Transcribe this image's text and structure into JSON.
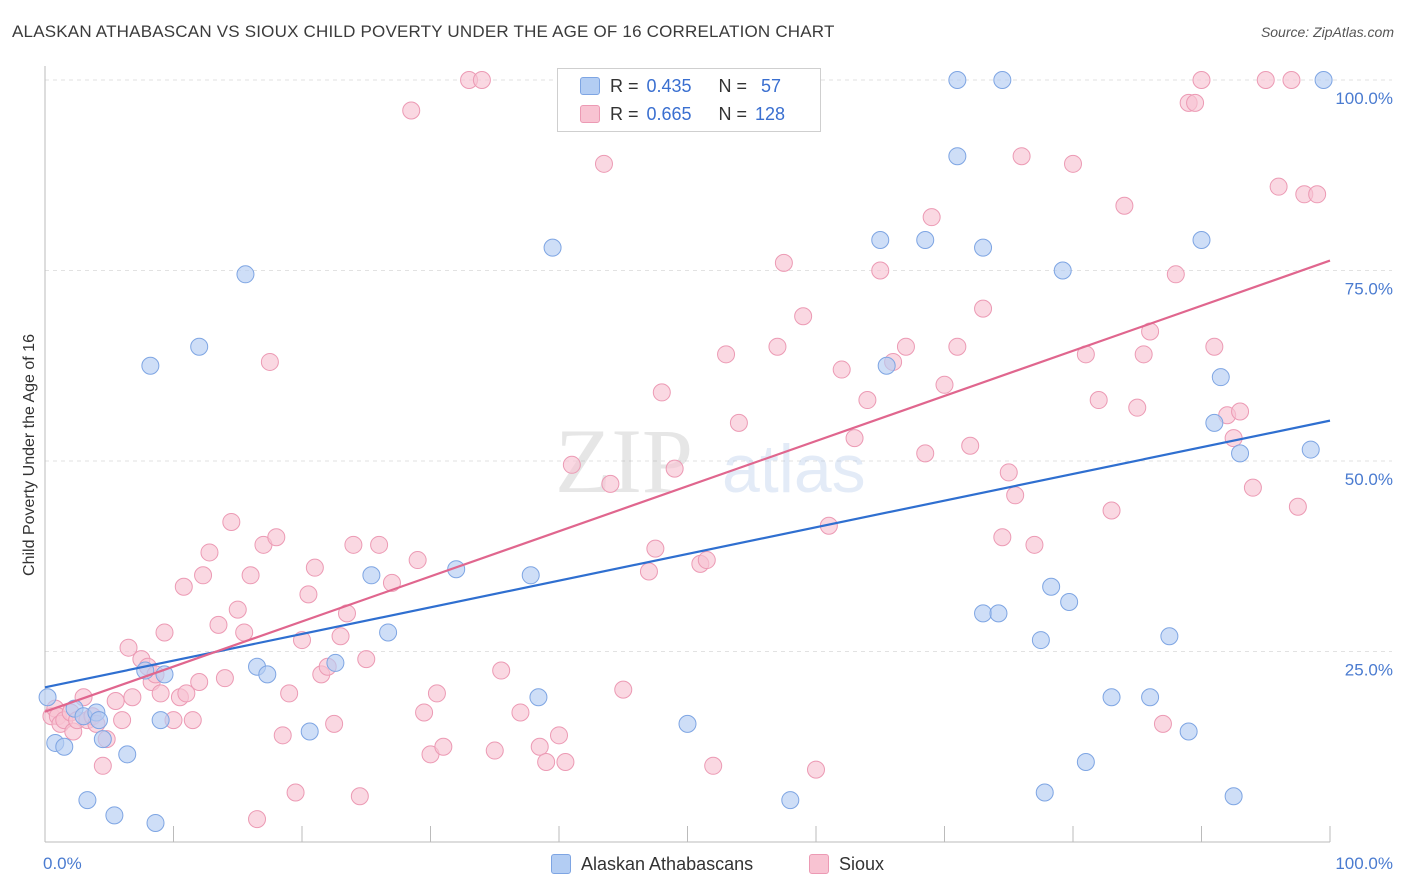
{
  "title": "ALASKAN ATHABASCAN VS SIOUX CHILD POVERTY UNDER THE AGE OF 16 CORRELATION CHART",
  "source": "Source: ZipAtlas.com",
  "watermark": {
    "part1": "ZIP",
    "part2": "atlas"
  },
  "legend": {
    "r_label": "R =",
    "n_label": "N =",
    "rows": [
      {
        "r": "0.435",
        "n": "57"
      },
      {
        "r": "0.665",
        "n": "128"
      }
    ]
  },
  "bottom_legend": [
    "Alaskan Athabascans",
    "Sioux"
  ],
  "chart_data": {
    "type": "scatter",
    "title": "ALASKAN ATHABASCAN VS SIOUX CHILD POVERTY UNDER THE AGE OF 16 CORRELATION CHART",
    "xlabel": "",
    "ylabel": "Child Poverty Under the Age of 16",
    "xlim": [
      0,
      100
    ],
    "ylim": [
      0,
      100
    ],
    "x_tick_labels": [
      "0.0%",
      "100.0%"
    ],
    "y_tick_labels": [
      "25.0%",
      "50.0%",
      "75.0%",
      "100.0%"
    ],
    "y_ticks": [
      25,
      50,
      75,
      100
    ],
    "grid": true,
    "legend_position": "top-center",
    "colors": {
      "blue_fill": "#b3cdf3",
      "blue_stroke": "#7ea5e3",
      "blue_line": "#2f6fd0",
      "pink_fill": "#f8c3d2",
      "pink_stroke": "#ec9ab4",
      "pink_line": "#e0668e"
    },
    "series": [
      {
        "name": "Alaskan Athabascans",
        "color": "blue",
        "trend": {
          "x": [
            0,
            100
          ],
          "y": [
            20.3,
            55.3
          ]
        },
        "points": [
          [
            0.2,
            19
          ],
          [
            0.8,
            13
          ],
          [
            1.5,
            12.5
          ],
          [
            2.3,
            17.5
          ],
          [
            3,
            16.5
          ],
          [
            3.3,
            5.5
          ],
          [
            4,
            17
          ],
          [
            4.2,
            16
          ],
          [
            4.5,
            13.5
          ],
          [
            5.4,
            3.5
          ],
          [
            6.4,
            11.5
          ],
          [
            7.8,
            22.5
          ],
          [
            8.2,
            62.5
          ],
          [
            8.6,
            2.5
          ],
          [
            9,
            16
          ],
          [
            9.3,
            22
          ],
          [
            12,
            65
          ],
          [
            15.6,
            74.5
          ],
          [
            16.5,
            23
          ],
          [
            17.3,
            22
          ],
          [
            20.6,
            14.5
          ],
          [
            22.6,
            23.5
          ],
          [
            25.4,
            35
          ],
          [
            26.7,
            27.5
          ],
          [
            32,
            35.8
          ],
          [
            37.8,
            35
          ],
          [
            38.4,
            19
          ],
          [
            39.5,
            78
          ],
          [
            50,
            15.5
          ],
          [
            58,
            5.5
          ],
          [
            65,
            79
          ],
          [
            65.5,
            62.5
          ],
          [
            68.5,
            79
          ],
          [
            71,
            90
          ],
          [
            71,
            100
          ],
          [
            73,
            78
          ],
          [
            73,
            30
          ],
          [
            74.2,
            30
          ],
          [
            74.5,
            100
          ],
          [
            77.5,
            26.5
          ],
          [
            77.8,
            6.5
          ],
          [
            78.3,
            33.5
          ],
          [
            79.2,
            75
          ],
          [
            79.7,
            31.5
          ],
          [
            81,
            10.5
          ],
          [
            83,
            19
          ],
          [
            86,
            19
          ],
          [
            87.5,
            27
          ],
          [
            89,
            14.5
          ],
          [
            90,
            79
          ],
          [
            91,
            55
          ],
          [
            91.5,
            61
          ],
          [
            92.5,
            6
          ],
          [
            93,
            51
          ],
          [
            98.5,
            51.5
          ],
          [
            99.5,
            100
          ]
        ]
      },
      {
        "name": "Sioux",
        "color": "pink",
        "trend": {
          "x": [
            0,
            100
          ],
          "y": [
            17.1,
            76.3
          ]
        },
        "points": [
          [
            0.5,
            16.5
          ],
          [
            0.8,
            17.5
          ],
          [
            1,
            16.5
          ],
          [
            1.2,
            15.5
          ],
          [
            1.5,
            16
          ],
          [
            2,
            17
          ],
          [
            2.2,
            14.5
          ],
          [
            2.5,
            16
          ],
          [
            3,
            19
          ],
          [
            3.3,
            16
          ],
          [
            3.7,
            16.5
          ],
          [
            4,
            15.5
          ],
          [
            4.5,
            10
          ],
          [
            4.8,
            13.5
          ],
          [
            5.5,
            18.5
          ],
          [
            6,
            16
          ],
          [
            6.5,
            25.5
          ],
          [
            6.8,
            19
          ],
          [
            7.5,
            24
          ],
          [
            8,
            23
          ],
          [
            8.3,
            21
          ],
          [
            8.6,
            22
          ],
          [
            9,
            19.5
          ],
          [
            9.3,
            27.5
          ],
          [
            10,
            16
          ],
          [
            10.5,
            19
          ],
          [
            10.8,
            33.5
          ],
          [
            11,
            19.5
          ],
          [
            11.5,
            16
          ],
          [
            12,
            21
          ],
          [
            12.3,
            35
          ],
          [
            12.8,
            38
          ],
          [
            13.5,
            28.5
          ],
          [
            14,
            21.5
          ],
          [
            14.5,
            42
          ],
          [
            15,
            30.5
          ],
          [
            15.5,
            27.5
          ],
          [
            16,
            35
          ],
          [
            16.5,
            3
          ],
          [
            17,
            39
          ],
          [
            17.5,
            63
          ],
          [
            18,
            40
          ],
          [
            18.5,
            14
          ],
          [
            19,
            19.5
          ],
          [
            19.5,
            6.5
          ],
          [
            20,
            26.5
          ],
          [
            20.5,
            32.5
          ],
          [
            21,
            36
          ],
          [
            21.5,
            22
          ],
          [
            22,
            23
          ],
          [
            22.5,
            15.5
          ],
          [
            23,
            27
          ],
          [
            23.5,
            30
          ],
          [
            24,
            39
          ],
          [
            24.5,
            6
          ],
          [
            25,
            24
          ],
          [
            26,
            39
          ],
          [
            27,
            34
          ],
          [
            28.5,
            96
          ],
          [
            29,
            37
          ],
          [
            29.5,
            17
          ],
          [
            30,
            11.5
          ],
          [
            30.5,
            19.5
          ],
          [
            31,
            12.5
          ],
          [
            33,
            100
          ],
          [
            34,
            100
          ],
          [
            35,
            12
          ],
          [
            35.5,
            22.5
          ],
          [
            37,
            17
          ],
          [
            38.5,
            12.5
          ],
          [
            39,
            10.5
          ],
          [
            40,
            14
          ],
          [
            40.5,
            10.5
          ],
          [
            41,
            49.5
          ],
          [
            43.5,
            89
          ],
          [
            44,
            47
          ],
          [
            45,
            20
          ],
          [
            47,
            35.5
          ],
          [
            47.5,
            38.5
          ],
          [
            48,
            59
          ],
          [
            49,
            49
          ],
          [
            51,
            36.5
          ],
          [
            51.5,
            37
          ],
          [
            52,
            10
          ],
          [
            53,
            64
          ],
          [
            54,
            55
          ],
          [
            57,
            65
          ],
          [
            57.5,
            76
          ],
          [
            59,
            69
          ],
          [
            60,
            9.5
          ],
          [
            61,
            41.5
          ],
          [
            62,
            62
          ],
          [
            63,
            53
          ],
          [
            64,
            58
          ],
          [
            65,
            75
          ],
          [
            66,
            63
          ],
          [
            67,
            65
          ],
          [
            68.5,
            51
          ],
          [
            69,
            82
          ],
          [
            70,
            60
          ],
          [
            71,
            65
          ],
          [
            72,
            52
          ],
          [
            73,
            70
          ],
          [
            74.5,
            40
          ],
          [
            75,
            48.5
          ],
          [
            75.5,
            45.5
          ],
          [
            76,
            90
          ],
          [
            77,
            39
          ],
          [
            80,
            89
          ],
          [
            81,
            64
          ],
          [
            82,
            58
          ],
          [
            83,
            43.5
          ],
          [
            84,
            83.5
          ],
          [
            85,
            57
          ],
          [
            85.5,
            64
          ],
          [
            86,
            67
          ],
          [
            87,
            15.5
          ],
          [
            88,
            74.5
          ],
          [
            89,
            97
          ],
          [
            89.5,
            97
          ],
          [
            90,
            100
          ],
          [
            91,
            65
          ],
          [
            92,
            56
          ],
          [
            92.5,
            53
          ],
          [
            93,
            56.5
          ],
          [
            94,
            46.5
          ],
          [
            95,
            100
          ],
          [
            96,
            86
          ],
          [
            97,
            100
          ],
          [
            97.5,
            44
          ],
          [
            98,
            85
          ],
          [
            99,
            85
          ]
        ]
      }
    ]
  }
}
